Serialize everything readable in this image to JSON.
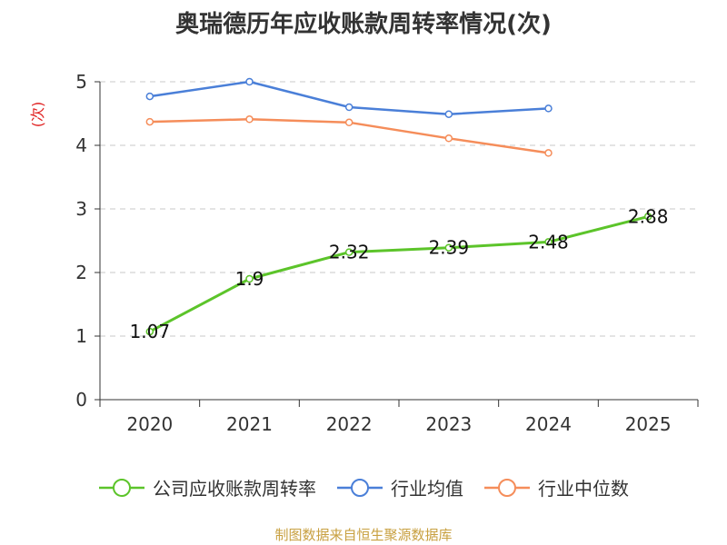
{
  "chart_data": {
    "type": "line",
    "title": "奥瑞德历年应收账款周转率情况(次)",
    "ylabel": "(次)",
    "xlabel": "",
    "categories": [
      "2020",
      "2021",
      "2022",
      "2023",
      "2024",
      "2025"
    ],
    "ylim": [
      0,
      5
    ],
    "yticks": [
      0,
      1,
      2,
      3,
      4,
      5
    ],
    "grid": true,
    "legend_position": "bottom",
    "series": [
      {
        "name": "公司应收账款周转率",
        "color": "#5cc42a",
        "values": [
          1.07,
          1.9,
          2.32,
          2.39,
          2.48,
          2.88
        ],
        "labels": [
          "1.07",
          "1.9",
          "2.32",
          "2.39",
          "2.48",
          "2.88"
        ],
        "show_labels": true
      },
      {
        "name": "行业均值",
        "color": "#4a7fd8",
        "values": [
          4.77,
          5.0,
          4.6,
          4.49,
          4.58,
          null
        ],
        "show_labels": false
      },
      {
        "name": "行业中位数",
        "color": "#f58d5a",
        "values": [
          4.37,
          4.41,
          4.36,
          4.11,
          3.88,
          null
        ],
        "show_labels": false
      }
    ]
  },
  "source": "制图数据来自恒生聚源数据库"
}
